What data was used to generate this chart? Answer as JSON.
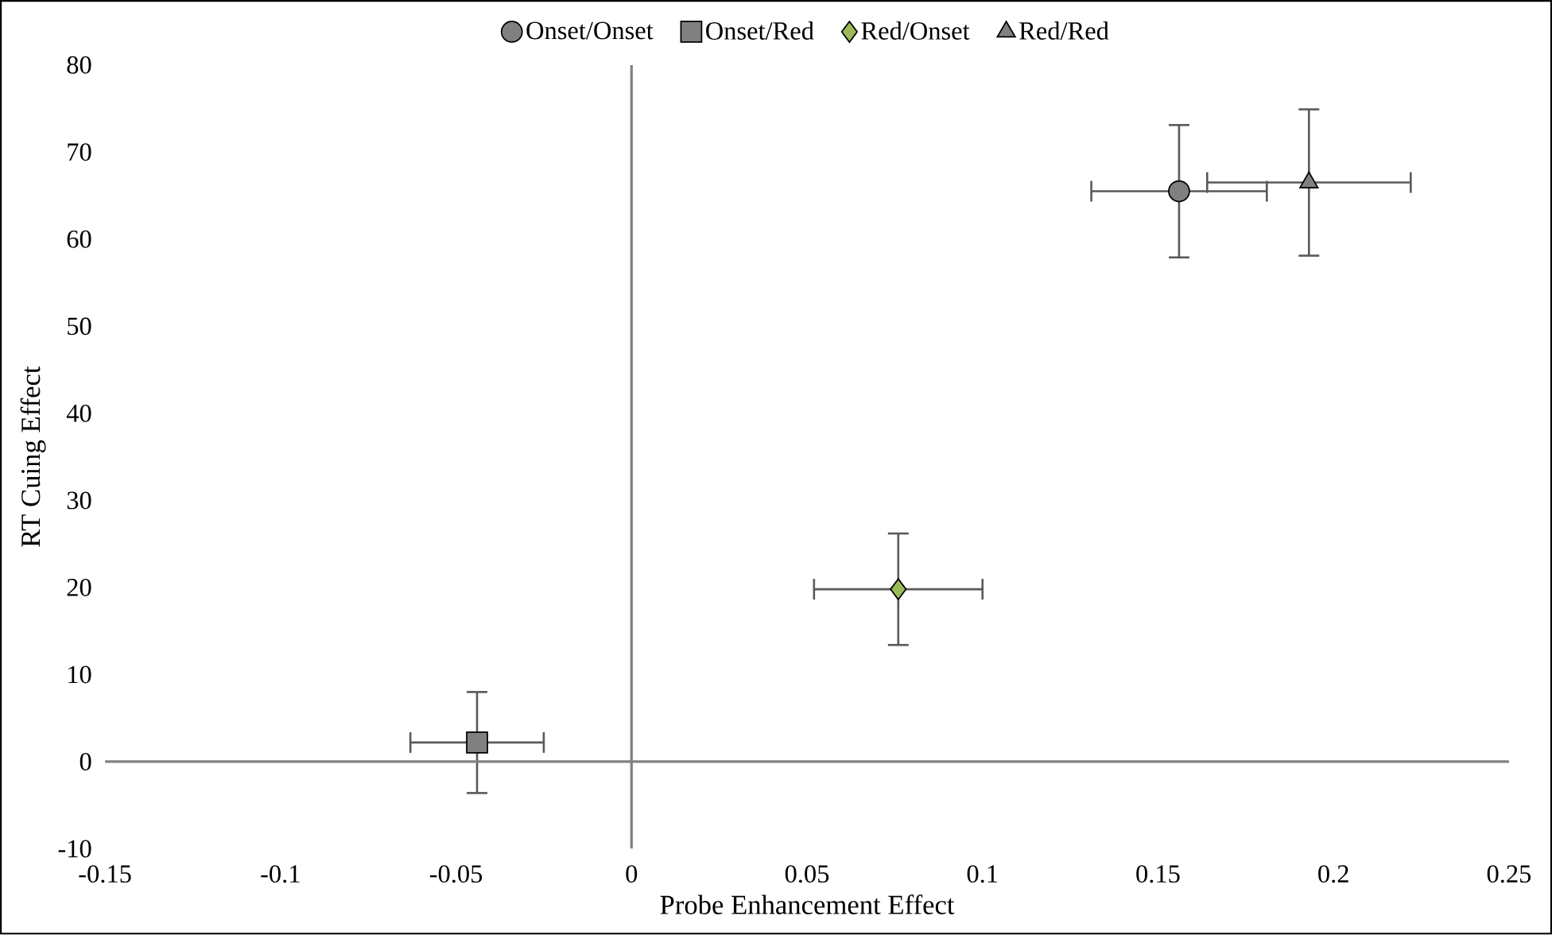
{
  "chart_data": {
    "type": "scatter",
    "xlabel": "Probe Enhancement Effect",
    "ylabel": "RT Cuing Effect",
    "xlim": [
      -0.15,
      0.25
    ],
    "xticks": [
      -0.15,
      -0.1,
      -0.05,
      0,
      0.05,
      0.1,
      0.15,
      0.2,
      0.25
    ],
    "ylim": [
      -10,
      80
    ],
    "yticks": [
      -10,
      0,
      10,
      20,
      30,
      40,
      50,
      60,
      70,
      80
    ],
    "legend": "top",
    "series": [
      {
        "name": "Onset/Onset",
        "color": "#808080",
        "marker": "circle",
        "x": [
          0.156
        ],
        "values": [
          65.5
        ],
        "errors": [
          7.6
        ],
        "xerrors": [
          0.025
        ]
      },
      {
        "name": "Onset/Red",
        "color": "#808080",
        "marker": "square",
        "x": [
          -0.044
        ],
        "values": [
          2.2
        ],
        "errors": [
          5.8
        ],
        "xerrors": [
          0.019
        ]
      },
      {
        "name": "Red/Onset",
        "color": "#9bbb59",
        "marker": "diamond",
        "x": [
          0.076
        ],
        "values": [
          19.8
        ],
        "errors": [
          6.4
        ],
        "xerrors": [
          0.024
        ]
      },
      {
        "name": "Red/Red",
        "color": "#808080",
        "marker": "triangle",
        "x": [
          0.193
        ],
        "values": [
          66.5
        ],
        "errors": [
          8.4
        ],
        "xerrors": [
          0.029
        ]
      }
    ]
  }
}
